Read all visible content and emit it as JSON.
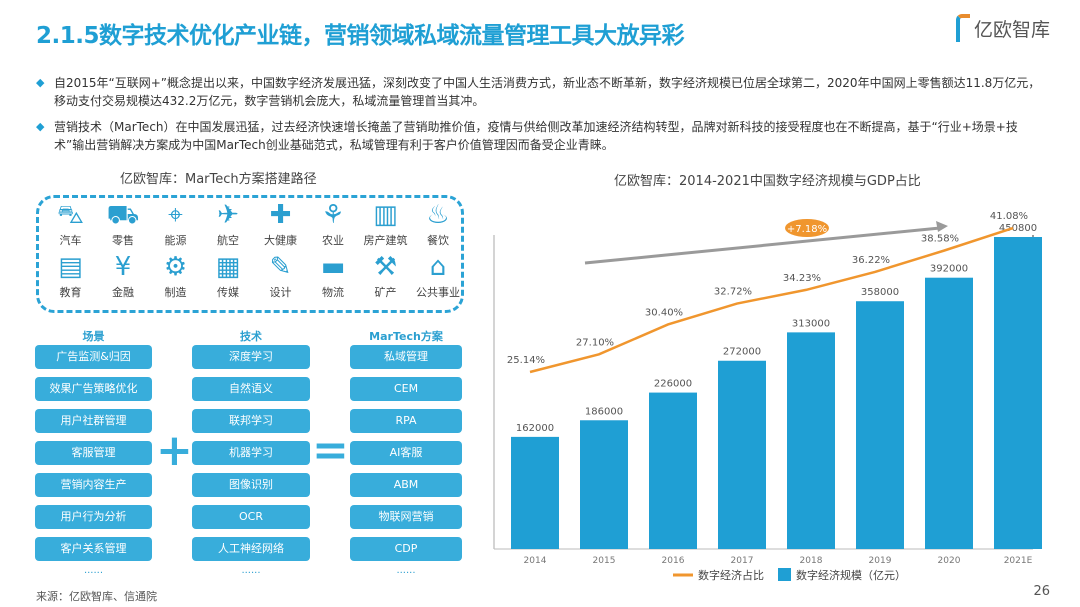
{
  "header": {
    "title": "2.1.5数字技术优化产业链，营销领域私域流量管理工具大放异彩",
    "logo_text": "亿欧智库"
  },
  "bullets": [
    "自2015年“互联网+”概念提出以来，中国数字经济发展迅猛，深刻改变了中国人生活消费方式，新业态不断革新，数字经济规模已位居全球第二，2020年中国网上零售额达11.8万亿元，移动支付交易规模达432.2万亿元，数字营销机会庞大，私域流量管理首当其冲。",
    "营销技术（MarTech）在中国发展迅猛，过去经济快速增长掩盖了营销助推价值，疫情与供给侧改革加速经济结构转型，品牌对新科技的接受程度也在不断提高，基于“行业+场景+技术”输出营销解决方案成为中国MarTech创业基础范式，私域管理有利于客户价值管理因而备受企业青睐。"
  ],
  "diagram": {
    "title": "亿欧智库：MarTech方案搭建路径",
    "industries": [
      {
        "label": "汽车",
        "icon": "car-icon",
        "glyph": "⛍"
      },
      {
        "label": "零售",
        "icon": "shopping-cart-icon",
        "glyph": "⛟"
      },
      {
        "label": "能源",
        "icon": "power-tower-icon",
        "glyph": "⌖"
      },
      {
        "label": "航空",
        "icon": "airplane-icon",
        "glyph": "✈"
      },
      {
        "label": "大健康",
        "icon": "medical-bag-icon",
        "glyph": "✚"
      },
      {
        "label": "农业",
        "icon": "farmer-icon",
        "glyph": "⚘"
      },
      {
        "label": "房产建筑",
        "icon": "building-icon",
        "glyph": "▥"
      },
      {
        "label": "餐饮",
        "icon": "food-bowl-icon",
        "glyph": "♨"
      },
      {
        "label": "教育",
        "icon": "book-icon",
        "glyph": "▤"
      },
      {
        "label": "金融",
        "icon": "yen-icon",
        "glyph": "¥"
      },
      {
        "label": "制造",
        "icon": "factory-robot-icon",
        "glyph": "⚙"
      },
      {
        "label": "传媒",
        "icon": "newspaper-icon",
        "glyph": "▦"
      },
      {
        "label": "设计",
        "icon": "ruler-pencil-icon",
        "glyph": "✎"
      },
      {
        "label": "物流",
        "icon": "truck-icon",
        "glyph": "▬"
      },
      {
        "label": "矿产",
        "icon": "miner-icon",
        "glyph": "⚒"
      },
      {
        "label": "公共事业",
        "icon": "public-building-icon",
        "glyph": "⌂"
      }
    ],
    "columns": [
      {
        "head": "场景",
        "items": [
          "广告监测&归因",
          "效果广告策略优化",
          "用户社群管理",
          "客服管理",
          "营销内容生产",
          "用户行为分析",
          "客户关系管理"
        ],
        "more": "......"
      },
      {
        "head": "技术",
        "items": [
          "深度学习",
          "自然语义",
          "联邦学习",
          "机器学习",
          "图像识别",
          "OCR",
          "人工神经网络"
        ],
        "more": "......"
      },
      {
        "head": "MarTech方案",
        "items": [
          "私域管理",
          "CEM",
          "RPA",
          "AI客服",
          "ABM",
          "物联网营销",
          "CDP"
        ],
        "more": "......"
      }
    ],
    "plus": "+",
    "equals": "="
  },
  "chart_data": {
    "type": "bar+line",
    "title": "亿欧智库：2014-2021中国数字经济规模与GDP占比",
    "categories": [
      "2014",
      "2015",
      "2016",
      "2017",
      "2018",
      "2019",
      "2020",
      "2021E"
    ],
    "series": [
      {
        "name": "数字经济规模（亿元）",
        "type": "bar",
        "color": "#1f9fd4",
        "values": [
          162000,
          186000,
          226000,
          272000,
          313000,
          358000,
          392000,
          450800
        ]
      },
      {
        "name": "数字经济占比",
        "type": "line",
        "color": "#f0962e",
        "values": [
          25.14,
          27.1,
          30.4,
          32.72,
          34.23,
          36.22,
          38.58,
          41.08
        ],
        "unit": "%"
      }
    ],
    "annotation": "+7.18%",
    "legend": "bottom",
    "grid": false
  },
  "footer": {
    "source": "来源：亿欧智库、信通院",
    "page": "26"
  }
}
